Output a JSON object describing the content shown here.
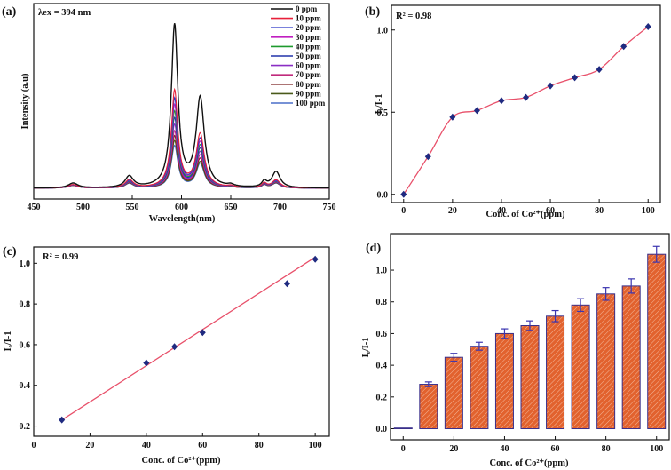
{
  "colors": {
    "fit_line": "#e8506a",
    "marker": "#1f2a80",
    "bar_fill": "#e2622e",
    "bar_edge": "#3a2f8a",
    "error_bar": "#3b35b0"
  },
  "chart_data": [
    {
      "panel": "(a)",
      "type": "line",
      "annotation": "λex = 394 nm",
      "xlabel": "Wavelength(nm)",
      "ylabel": "Intensity (a.u)",
      "xlim": [
        450,
        750
      ],
      "xticks": [
        450,
        500,
        550,
        600,
        650,
        700,
        750
      ],
      "peaks_nm": [
        490,
        547,
        593,
        619,
        650,
        684,
        696
      ],
      "series": [
        {
          "name": "0 ppm",
          "color": "#111111",
          "peak_heights": [
            0.03,
            0.07,
            1.0,
            0.55,
            0.012,
            0.035,
            0.1
          ]
        },
        {
          "name": "10 ppm",
          "color": "#e8203a",
          "peak_heights": [
            0.022,
            0.05,
            0.6,
            0.33,
            0.01,
            0.028,
            0.05
          ]
        },
        {
          "name": "20 ppm",
          "color": "#2a36c8",
          "peak_heights": [
            0.021,
            0.045,
            0.55,
            0.3,
            0.01,
            0.026,
            0.046
          ]
        },
        {
          "name": "30 ppm",
          "color": "#c01fc0",
          "peak_heights": [
            0.02,
            0.043,
            0.51,
            0.28,
            0.01,
            0.025,
            0.044
          ]
        },
        {
          "name": "40 ppm",
          "color": "#1e9a2e",
          "peak_heights": [
            0.02,
            0.041,
            0.47,
            0.26,
            0.009,
            0.024,
            0.042
          ]
        },
        {
          "name": "50 ppm",
          "color": "#2233aa",
          "peak_heights": [
            0.019,
            0.039,
            0.43,
            0.24,
            0.009,
            0.023,
            0.04
          ]
        },
        {
          "name": "60 ppm",
          "color": "#8a2ec4",
          "peak_heights": [
            0.019,
            0.037,
            0.39,
            0.22,
            0.009,
            0.022,
            0.038
          ]
        },
        {
          "name": "70 ppm",
          "color": "#c02a7c",
          "peak_heights": [
            0.018,
            0.035,
            0.35,
            0.2,
            0.008,
            0.021,
            0.036
          ]
        },
        {
          "name": "80 ppm",
          "color": "#7a2020",
          "peak_heights": [
            0.018,
            0.033,
            0.32,
            0.18,
            0.008,
            0.02,
            0.034
          ]
        },
        {
          "name": "90 ppm",
          "color": "#4a5a1a",
          "peak_heights": [
            0.017,
            0.031,
            0.29,
            0.16,
            0.008,
            0.019,
            0.032
          ]
        },
        {
          "name": "100 ppm",
          "color": "#4a6ec8",
          "peak_heights": [
            0.017,
            0.029,
            0.26,
            0.15,
            0.008,
            0.018,
            0.03
          ]
        }
      ]
    },
    {
      "panel": "(b)",
      "type": "scatter",
      "annotation": "R² = 0.98",
      "xlabel": "Conc. of Co²⁺(ppm)",
      "ylabel": "I₀/I-1",
      "xlim": [
        -5,
        105
      ],
      "ylim": [
        -0.05,
        1.15
      ],
      "xticks": [
        0,
        20,
        40,
        60,
        80,
        100
      ],
      "yticks": [
        "0.0",
        "0.5",
        "1.0"
      ],
      "x": [
        0,
        10,
        20,
        30,
        40,
        50,
        60,
        70,
        80,
        90,
        100
      ],
      "y": [
        0.0,
        0.23,
        0.47,
        0.51,
        0.57,
        0.59,
        0.66,
        0.71,
        0.76,
        0.9,
        1.02
      ],
      "fit": "smooth curve"
    },
    {
      "panel": "(c)",
      "type": "scatter",
      "annotation": "R² = 0.99",
      "xlabel": "Conc. of Co²⁺(ppm)",
      "ylabel": "I₀/I-1",
      "xlim": [
        0,
        105
      ],
      "ylim": [
        0.15,
        1.08
      ],
      "xticks": [
        0,
        20,
        40,
        60,
        80,
        100
      ],
      "yticks": [
        "0.2",
        "0.4",
        "0.6",
        "0.8",
        "1.0"
      ],
      "x": [
        10,
        40,
        50,
        60,
        90,
        100
      ],
      "y": [
        0.23,
        0.51,
        0.59,
        0.66,
        0.9,
        1.02
      ],
      "fit": "linear",
      "fit_line": {
        "x": [
          10,
          100
        ],
        "y": [
          0.23,
          1.03
        ]
      }
    },
    {
      "panel": "(d)",
      "type": "bar",
      "xlabel": "Conc. of Co²⁺(ppm)",
      "ylabel": "I₀/I-1",
      "ylim": [
        -0.07,
        1.23
      ],
      "xticks": [
        0,
        20,
        40,
        60,
        80,
        100
      ],
      "yticks": [
        "0.0",
        "0.2",
        "0.4",
        "0.6",
        "0.8",
        "1.0"
      ],
      "categories": [
        0,
        10,
        20,
        30,
        40,
        50,
        60,
        70,
        80,
        90,
        100
      ],
      "values": [
        0.0,
        0.28,
        0.45,
        0.52,
        0.6,
        0.65,
        0.71,
        0.78,
        0.85,
        0.9,
        1.1
      ],
      "errors": [
        0.0,
        0.015,
        0.025,
        0.025,
        0.03,
        0.03,
        0.035,
        0.04,
        0.04,
        0.045,
        0.05
      ]
    }
  ]
}
